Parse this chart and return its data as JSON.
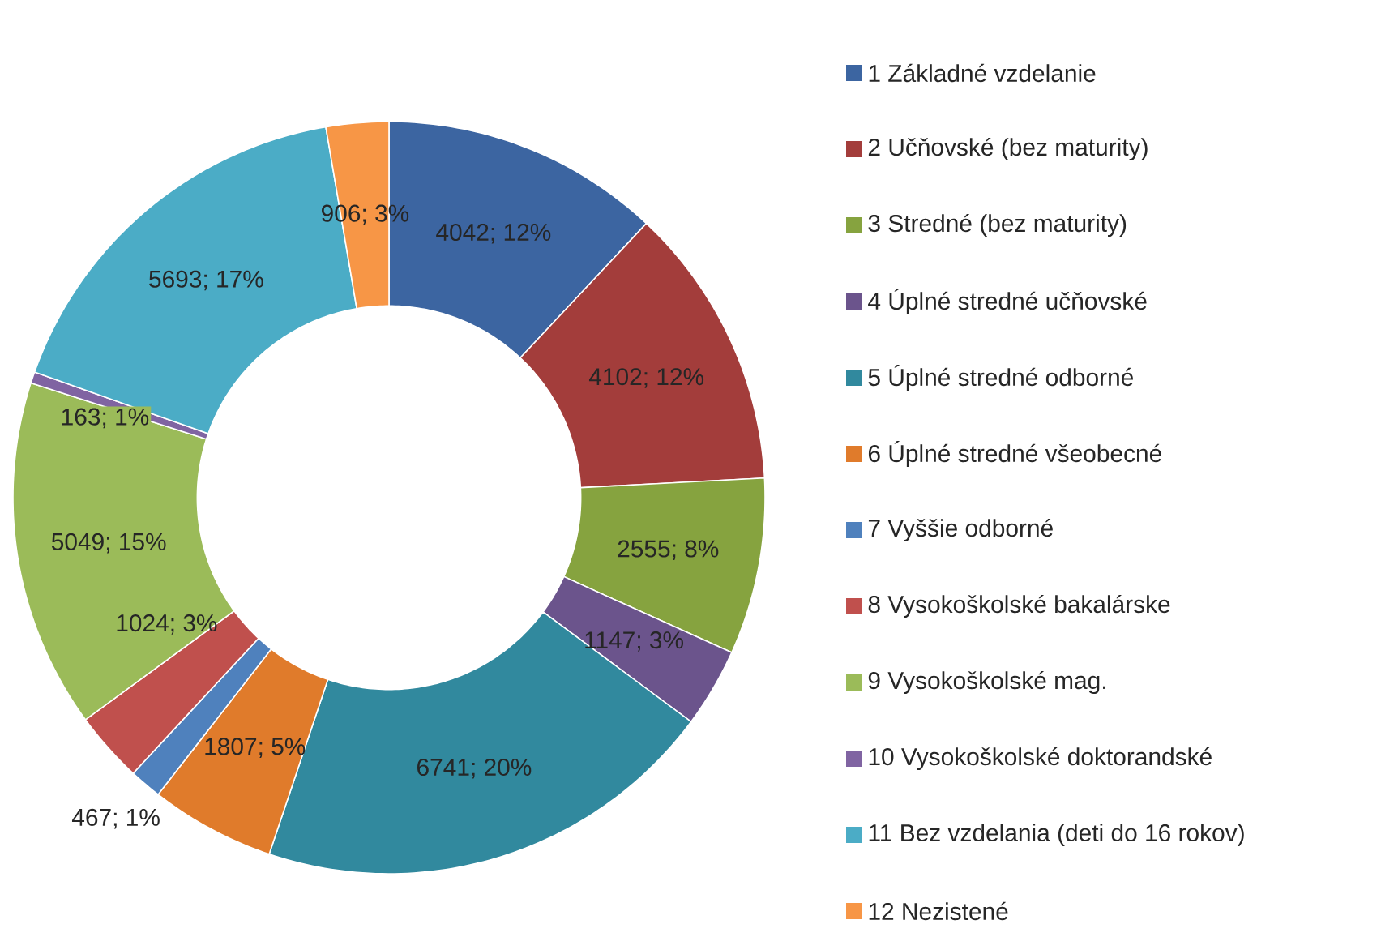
{
  "chart_data": {
    "type": "donut",
    "categories": [
      "1 Základné vzdelanie",
      "2 Učňovské (bez maturity)",
      "3 Stredné (bez maturity)",
      "4 Úplné stredné učňovské",
      "5 Úplné stredné odborné",
      "6 Úplné stredné všeobecné",
      "7 Vyššie odborné",
      "8 Vysokoškolské bakalárske",
      "9 Vysokoškolské mag.",
      "10 Vysokoškolské doktorandské",
      "11 Bez vzdelania (deti do 16 rokov)",
      "12 Nezistené"
    ],
    "values": [
      4042,
      4102,
      2555,
      1147,
      6741,
      1807,
      467,
      1024,
      5049,
      163,
      5693,
      906
    ],
    "value_labels": [
      "4042; 12%",
      "4102; 12%",
      "2555; 8%",
      "1147; 3%",
      "6741; 20%",
      "1807; 5%",
      "467; 1%",
      "1024; 3%",
      "5049; 15%",
      "163; 1%",
      "5693; 17%",
      "906; 3%"
    ],
    "colors": [
      "#3c65a1",
      "#a33d3b",
      "#86a33f",
      "#6b548c",
      "#31899e",
      "#e07b2b",
      "#4f81bd",
      "#c0504d",
      "#9bbb59",
      "#8064a2",
      "#4bacc6",
      "#f79646"
    ],
    "legend": "right"
  }
}
